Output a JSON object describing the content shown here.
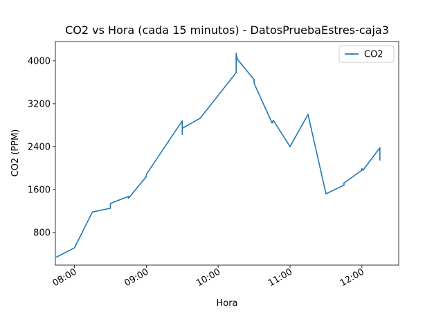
{
  "chart_data": {
    "type": "line",
    "title": "CO2 vs Hora (cada 15 minutos) - DatosPruebaEstres-caja3",
    "xlabel": "Hora",
    "ylabel": "CO2 (PPM)",
    "x_ticks": [
      "08:00",
      "09:00",
      "10:00",
      "11:00",
      "12:00"
    ],
    "y_ticks": [
      800,
      1600,
      2400,
      3200,
      4000
    ],
    "xlim": [
      "07:45",
      "12:30"
    ],
    "ylim": [
      190,
      4360
    ],
    "legend": {
      "position": "top-right",
      "entries": [
        "CO2"
      ]
    },
    "series": [
      {
        "name": "CO2",
        "color": "#1f77b4",
        "points": [
          [
            "07:45",
            340
          ],
          [
            "08:00",
            510
          ],
          [
            "08:15",
            1180
          ],
          [
            "08:30",
            1250
          ],
          [
            "08:30",
            1340
          ],
          [
            "08:45",
            1470
          ],
          [
            "08:45",
            1440
          ],
          [
            "08:46",
            1460
          ],
          [
            "09:00",
            1840
          ],
          [
            "09:00",
            1880
          ],
          [
            "09:30",
            2880
          ],
          [
            "09:30",
            2630
          ],
          [
            "09:30",
            2740
          ],
          [
            "09:45",
            2930
          ],
          [
            "10:15",
            3780
          ],
          [
            "10:15",
            3850
          ],
          [
            "10:15",
            4140
          ],
          [
            "10:16",
            4030
          ],
          [
            "10:30",
            3650
          ],
          [
            "10:30",
            3580
          ],
          [
            "10:45",
            2840
          ],
          [
            "10:46",
            2890
          ],
          [
            "11:00",
            2400
          ],
          [
            "11:15",
            3000
          ],
          [
            "11:30",
            1520
          ],
          [
            "11:45",
            1680
          ],
          [
            "11:45",
            1720
          ],
          [
            "12:00",
            1960
          ],
          [
            "12:00",
            1990
          ],
          [
            "12:01",
            1960
          ],
          [
            "12:15",
            2380
          ],
          [
            "12:15",
            2150
          ],
          [
            "12:15",
            2180
          ]
        ]
      }
    ]
  }
}
